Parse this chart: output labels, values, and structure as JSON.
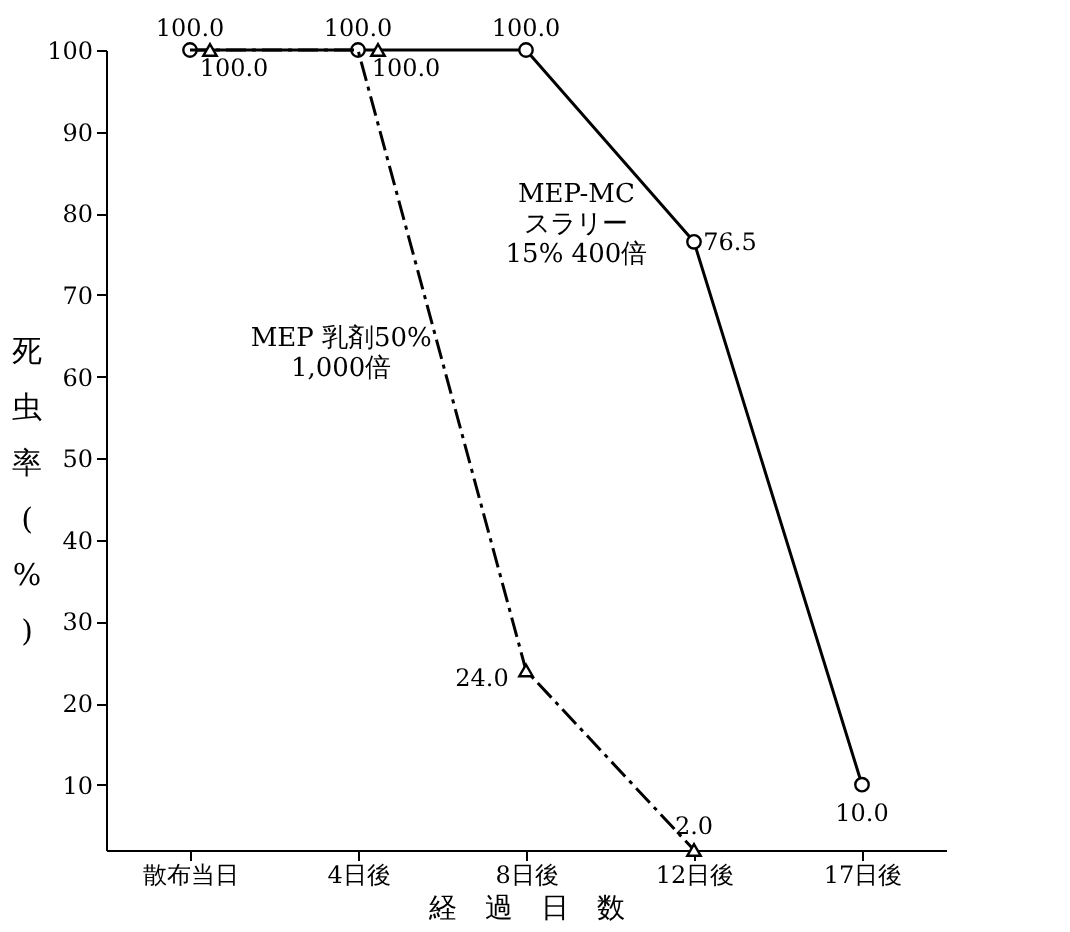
{
  "chart_data": {
    "type": "line",
    "xlabel": "経　過　日　数",
    "ylabel": "死虫率(%)",
    "categories": [
      "散布当日",
      "4日後",
      "8日後",
      "12日後",
      "17日後"
    ],
    "series": [
      {
        "name": "MEP-MC\nスラリー\n15% 400倍",
        "color": "#000000",
        "marker": "circle",
        "line_style": "solid",
        "values": [
          100.0,
          100.0,
          100.0,
          76.5,
          10.0
        ],
        "value_labels": [
          "100.0",
          "100.0",
          "100.0",
          "76.5",
          "10.0"
        ]
      },
      {
        "name": "MEP 乳剤50%\n1,000倍",
        "color": "#000000",
        "marker": "triangle",
        "line_style": "dashed",
        "values": [
          100.0,
          100.0,
          24.0,
          2.0,
          null
        ],
        "value_labels": [
          "100.0",
          "100.0",
          "24.0",
          "2.0",
          null
        ]
      }
    ],
    "ylim": [
      2,
      100
    ],
    "yticks": [
      10,
      20,
      30,
      40,
      50,
      60,
      70,
      80,
      90,
      100
    ],
    "grid": false,
    "legend": false
  }
}
